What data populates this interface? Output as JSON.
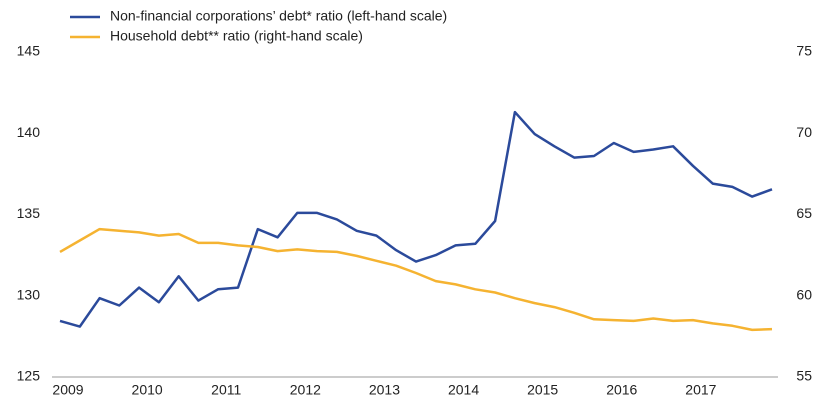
{
  "chart_data": {
    "type": "line",
    "categories": [
      "2009",
      null,
      null,
      null,
      "2010",
      null,
      null,
      null,
      "2011",
      null,
      null,
      null,
      "2012",
      null,
      null,
      null,
      "2013",
      null,
      null,
      null,
      "2014",
      null,
      null,
      null,
      "2015",
      null,
      null,
      null,
      "2016",
      null,
      null,
      null,
      "2017",
      null,
      null,
      null,
      null
    ],
    "series": [
      {
        "name": "Non-financial corporations’ debt* ratio (left-hand scale)",
        "color": "#2b4a9b",
        "axis": "y",
        "values": [
          128.45,
          128.1,
          129.85,
          129.4,
          130.5,
          129.6,
          131.2,
          129.7,
          130.4,
          130.5,
          134.1,
          133.6,
          135.1,
          135.1,
          134.7,
          134.0,
          133.7,
          132.8,
          132.1,
          132.5,
          133.1,
          133.2,
          134.6,
          141.3,
          139.95,
          139.2,
          138.5,
          138.6,
          139.4,
          138.85,
          139.0,
          139.2,
          138.0,
          136.9,
          136.7,
          136.1,
          136.55
        ]
      },
      {
        "name": "Household debt** ratio (right-hand scale)",
        "color": "#f5b331",
        "axis": "y2",
        "values": [
          62.7,
          63.4,
          64.1,
          64.0,
          63.9,
          63.7,
          63.8,
          63.25,
          63.25,
          63.1,
          63.0,
          62.75,
          62.85,
          62.75,
          62.7,
          62.45,
          62.15,
          61.85,
          61.4,
          60.9,
          60.7,
          60.4,
          60.2,
          59.85,
          59.55,
          59.3,
          58.95,
          58.55,
          58.5,
          58.45,
          58.6,
          58.45,
          58.5,
          58.3,
          58.15,
          57.9,
          57.95
        ]
      }
    ],
    "ylim": [
      125,
      145
    ],
    "yticks": [
      125,
      130,
      135,
      140,
      145
    ],
    "y2lim": [
      55,
      75
    ],
    "y2ticks": [
      55,
      60,
      65,
      70,
      75
    ],
    "grid": false
  }
}
